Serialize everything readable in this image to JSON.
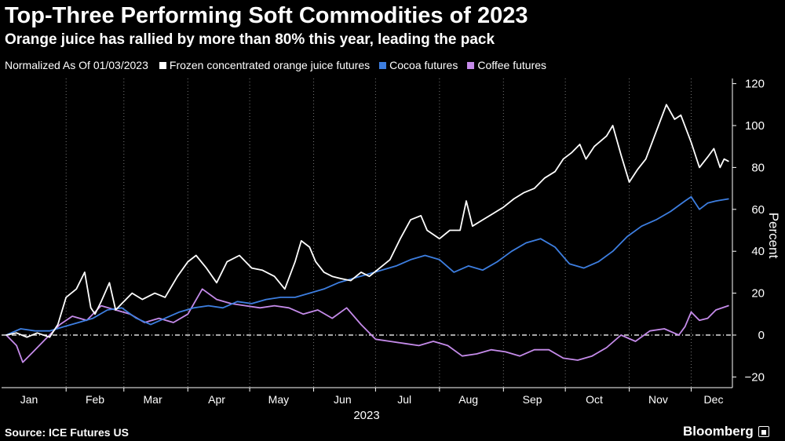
{
  "title": "Top-Three Performing Soft Commodities of 2023",
  "subtitle": "Orange juice has rallied by more than 80% this year, leading the pack",
  "legend": {
    "normalized_label": "Normalized As Of 01/03/2023"
  },
  "footer": {
    "source": "Source: ICE Futures US",
    "brand": "Bloomberg",
    "brand_icon": "bloomberg-logo-icon"
  },
  "chart_data": {
    "type": "line",
    "xlabel": "2023",
    "ylabel": "Percent",
    "ylim": [
      -20,
      120
    ],
    "yticks": [
      -20,
      0,
      20,
      40,
      60,
      80,
      100,
      120
    ],
    "x_ticks": [
      "Jan",
      "Feb",
      "Mar",
      "Apr",
      "May",
      "Jun",
      "Jul",
      "Aug",
      "Sep",
      "Oct",
      "Nov",
      "Dec"
    ],
    "x_domain": [
      "2023-01-03",
      "2023-12-13"
    ],
    "zero_line": "dashed",
    "grid": "vertical dotted",
    "legend_placement": "top-left",
    "series": [
      {
        "name": "Frozen concentrated orange juice futures",
        "color": "#ffffff",
        "points": [
          [
            "2023-01-03",
            0
          ],
          [
            "2023-01-08",
            1
          ],
          [
            "2023-01-13",
            -1
          ],
          [
            "2023-01-18",
            1
          ],
          [
            "2023-01-24",
            -1
          ],
          [
            "2023-01-28",
            5
          ],
          [
            "2023-02-01",
            18
          ],
          [
            "2023-02-06",
            22
          ],
          [
            "2023-02-10",
            30
          ],
          [
            "2023-02-13",
            13
          ],
          [
            "2023-02-15",
            10
          ],
          [
            "2023-02-18",
            16
          ],
          [
            "2023-02-22",
            25
          ],
          [
            "2023-02-25",
            12
          ],
          [
            "2023-02-28",
            15
          ],
          [
            "2023-03-05",
            20
          ],
          [
            "2023-03-10",
            17
          ],
          [
            "2023-03-16",
            20
          ],
          [
            "2023-03-21",
            18
          ],
          [
            "2023-03-27",
            28
          ],
          [
            "2023-04-01",
            35
          ],
          [
            "2023-04-05",
            38
          ],
          [
            "2023-04-10",
            32
          ],
          [
            "2023-04-15",
            25
          ],
          [
            "2023-04-20",
            35
          ],
          [
            "2023-04-26",
            38
          ],
          [
            "2023-05-02",
            32
          ],
          [
            "2023-05-07",
            31
          ],
          [
            "2023-05-13",
            28
          ],
          [
            "2023-05-18",
            22
          ],
          [
            "2023-05-23",
            35
          ],
          [
            "2023-05-26",
            45
          ],
          [
            "2023-05-30",
            42
          ],
          [
            "2023-06-02",
            35
          ],
          [
            "2023-06-06",
            30
          ],
          [
            "2023-06-10",
            28
          ],
          [
            "2023-06-14",
            27
          ],
          [
            "2023-06-19",
            26
          ],
          [
            "2023-06-24",
            30
          ],
          [
            "2023-06-28",
            28
          ],
          [
            "2023-07-03",
            32
          ],
          [
            "2023-07-08",
            36
          ],
          [
            "2023-07-13",
            46
          ],
          [
            "2023-07-18",
            55
          ],
          [
            "2023-07-23",
            57
          ],
          [
            "2023-07-26",
            50
          ],
          [
            "2023-08-01",
            46
          ],
          [
            "2023-08-06",
            50
          ],
          [
            "2023-08-11",
            50
          ],
          [
            "2023-08-14",
            64
          ],
          [
            "2023-08-17",
            52
          ],
          [
            "2023-08-22",
            55
          ],
          [
            "2023-08-27",
            58
          ],
          [
            "2023-09-01",
            61
          ],
          [
            "2023-09-06",
            65
          ],
          [
            "2023-09-11",
            68
          ],
          [
            "2023-09-16",
            70
          ],
          [
            "2023-09-21",
            75
          ],
          [
            "2023-09-26",
            78
          ],
          [
            "2023-09-30",
            84
          ],
          [
            "2023-10-04",
            87
          ],
          [
            "2023-10-08",
            91
          ],
          [
            "2023-10-11",
            84
          ],
          [
            "2023-10-15",
            90
          ],
          [
            "2023-10-21",
            95
          ],
          [
            "2023-10-24",
            100
          ],
          [
            "2023-10-28",
            86
          ],
          [
            "2023-11-01",
            73
          ],
          [
            "2023-11-05",
            79
          ],
          [
            "2023-11-09",
            84
          ],
          [
            "2023-11-14",
            97
          ],
          [
            "2023-11-19",
            110
          ],
          [
            "2023-11-23",
            103
          ],
          [
            "2023-11-26",
            105
          ],
          [
            "2023-12-01",
            92
          ],
          [
            "2023-12-05",
            80
          ],
          [
            "2023-12-09",
            85
          ],
          [
            "2023-12-12",
            89
          ],
          [
            "2023-12-15",
            80
          ],
          [
            "2023-12-17",
            84
          ],
          [
            "2023-12-19",
            83
          ]
        ]
      },
      {
        "name": "Cocoa futures",
        "color": "#3d7ee0",
        "points": [
          [
            "2023-01-03",
            0
          ],
          [
            "2023-01-10",
            3
          ],
          [
            "2023-01-17",
            2
          ],
          [
            "2023-01-24",
            2
          ],
          [
            "2023-01-31",
            4
          ],
          [
            "2023-02-07",
            6
          ],
          [
            "2023-02-14",
            8
          ],
          [
            "2023-02-21",
            12
          ],
          [
            "2023-02-28",
            13
          ],
          [
            "2023-03-07",
            8
          ],
          [
            "2023-03-14",
            5
          ],
          [
            "2023-03-21",
            8
          ],
          [
            "2023-03-28",
            11
          ],
          [
            "2023-04-04",
            13
          ],
          [
            "2023-04-11",
            14
          ],
          [
            "2023-04-18",
            13
          ],
          [
            "2023-04-25",
            16
          ],
          [
            "2023-05-02",
            15
          ],
          [
            "2023-05-09",
            17
          ],
          [
            "2023-05-16",
            18
          ],
          [
            "2023-05-23",
            18
          ],
          [
            "2023-05-30",
            20
          ],
          [
            "2023-06-06",
            22
          ],
          [
            "2023-06-13",
            25
          ],
          [
            "2023-06-20",
            27
          ],
          [
            "2023-06-27",
            29
          ],
          [
            "2023-07-04",
            31
          ],
          [
            "2023-07-11",
            33
          ],
          [
            "2023-07-18",
            36
          ],
          [
            "2023-07-25",
            38
          ],
          [
            "2023-08-01",
            36
          ],
          [
            "2023-08-08",
            30
          ],
          [
            "2023-08-15",
            33
          ],
          [
            "2023-08-22",
            31
          ],
          [
            "2023-08-29",
            35
          ],
          [
            "2023-09-05",
            40
          ],
          [
            "2023-09-12",
            44
          ],
          [
            "2023-09-19",
            46
          ],
          [
            "2023-09-26",
            42
          ],
          [
            "2023-10-03",
            34
          ],
          [
            "2023-10-10",
            32
          ],
          [
            "2023-10-17",
            35
          ],
          [
            "2023-10-24",
            40
          ],
          [
            "2023-10-31",
            47
          ],
          [
            "2023-11-07",
            52
          ],
          [
            "2023-11-14",
            55
          ],
          [
            "2023-11-21",
            59
          ],
          [
            "2023-11-28",
            64
          ],
          [
            "2023-12-01",
            66
          ],
          [
            "2023-12-05",
            60
          ],
          [
            "2023-12-09",
            63
          ],
          [
            "2023-12-13",
            64
          ],
          [
            "2023-12-19",
            65
          ]
        ]
      },
      {
        "name": "Coffee futures",
        "color": "#c58bea",
        "points": [
          [
            "2023-01-03",
            0
          ],
          [
            "2023-01-08",
            -5
          ],
          [
            "2023-01-11",
            -13
          ],
          [
            "2023-01-16",
            -8
          ],
          [
            "2023-01-22",
            -2
          ],
          [
            "2023-01-29",
            5
          ],
          [
            "2023-02-04",
            9
          ],
          [
            "2023-02-11",
            7
          ],
          [
            "2023-02-18",
            14
          ],
          [
            "2023-02-25",
            12
          ],
          [
            "2023-03-04",
            10
          ],
          [
            "2023-03-11",
            6
          ],
          [
            "2023-03-18",
            8
          ],
          [
            "2023-03-25",
            6
          ],
          [
            "2023-04-01",
            10
          ],
          [
            "2023-04-08",
            22
          ],
          [
            "2023-04-15",
            17
          ],
          [
            "2023-04-22",
            15
          ],
          [
            "2023-04-29",
            14
          ],
          [
            "2023-05-06",
            13
          ],
          [
            "2023-05-13",
            14
          ],
          [
            "2023-05-20",
            13
          ],
          [
            "2023-05-27",
            10
          ],
          [
            "2023-06-03",
            12
          ],
          [
            "2023-06-10",
            8
          ],
          [
            "2023-06-17",
            13
          ],
          [
            "2023-06-24",
            5
          ],
          [
            "2023-07-01",
            -2
          ],
          [
            "2023-07-08",
            -3
          ],
          [
            "2023-07-15",
            -4
          ],
          [
            "2023-07-22",
            -5
          ],
          [
            "2023-07-29",
            -3
          ],
          [
            "2023-08-05",
            -5
          ],
          [
            "2023-08-12",
            -10
          ],
          [
            "2023-08-19",
            -9
          ],
          [
            "2023-08-26",
            -7
          ],
          [
            "2023-09-02",
            -8
          ],
          [
            "2023-09-09",
            -10
          ],
          [
            "2023-09-16",
            -7
          ],
          [
            "2023-09-23",
            -7
          ],
          [
            "2023-09-30",
            -11
          ],
          [
            "2023-10-07",
            -12
          ],
          [
            "2023-10-14",
            -10
          ],
          [
            "2023-10-21",
            -6
          ],
          [
            "2023-10-28",
            0
          ],
          [
            "2023-11-04",
            -3
          ],
          [
            "2023-11-11",
            2
          ],
          [
            "2023-11-18",
            3
          ],
          [
            "2023-11-25",
            0
          ],
          [
            "2023-11-28",
            4
          ],
          [
            "2023-12-01",
            11
          ],
          [
            "2023-12-05",
            7
          ],
          [
            "2023-12-09",
            8
          ],
          [
            "2023-12-13",
            12
          ],
          [
            "2023-12-19",
            14
          ]
        ]
      }
    ]
  }
}
